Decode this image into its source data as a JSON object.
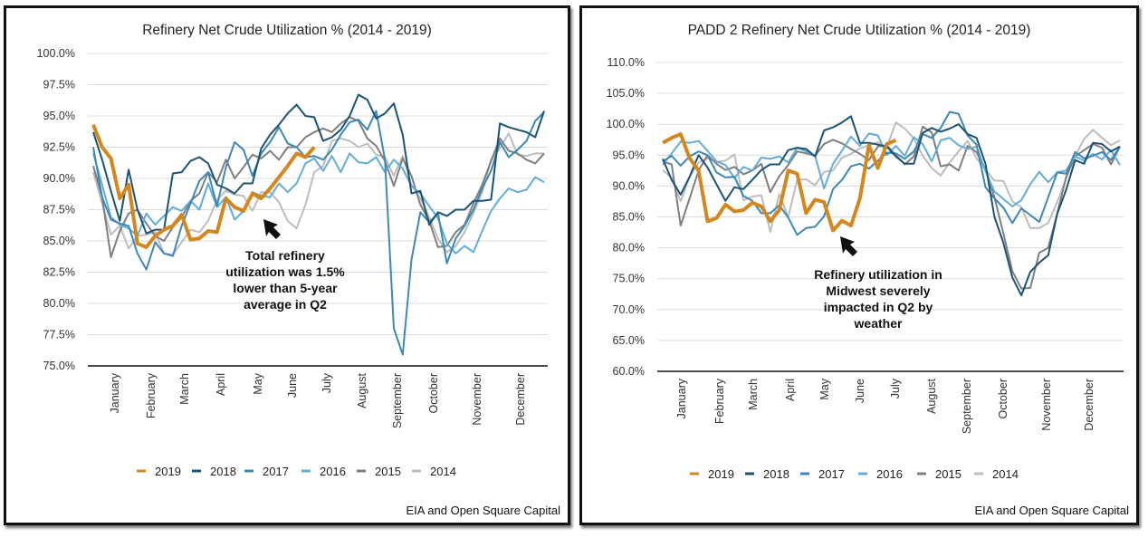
{
  "chart_data": [
    {
      "type": "line",
      "title": "Refinery Net Crude Utilization % (2014 - 2019)",
      "xlabel": "",
      "ylabel": "",
      "ylim": [
        75.0,
        100.0
      ],
      "yticks": [
        "75.0%",
        "77.5%",
        "80.0%",
        "82.5%",
        "85.0%",
        "87.5%",
        "90.0%",
        "92.5%",
        "95.0%",
        "97.5%",
        "100.0%"
      ],
      "ytick_values": [
        75.0,
        77.5,
        80.0,
        82.5,
        85.0,
        87.5,
        90.0,
        92.5,
        95.0,
        97.5,
        100.0
      ],
      "xticks": [
        "January",
        "February",
        "March",
        "April",
        "May",
        "June",
        "July",
        "August",
        "September",
        "October",
        "November",
        "December"
      ],
      "grid": true,
      "legend": "bottom",
      "annotation": [
        "Total refinery",
        "utilization was 1.5%",
        "lower than 5-year",
        "average in Q2"
      ],
      "credit": "EIA and Open Square Capital",
      "x_weeks": 52,
      "series": [
        {
          "name": "2019",
          "color": "#d4861f",
          "values": [
            94.3,
            92.5,
            91.6,
            88.4,
            89.5,
            84.8,
            84.5,
            85.4,
            85.9,
            86.2,
            87.1,
            85.1,
            85.2,
            85.8,
            85.7,
            88.4,
            87.7,
            87.4,
            88.8,
            88.4,
            89.2,
            90.1,
            91.0,
            92.0,
            91.7,
            92.5,
            null,
            null,
            null,
            null,
            null,
            null,
            null,
            null,
            null,
            null,
            null,
            null,
            null,
            null,
            null,
            null,
            null,
            null,
            null,
            null,
            null,
            null,
            null,
            null,
            null,
            null
          ]
        },
        {
          "name": "2018",
          "color": "#1c5473",
          "values": [
            93.7,
            91.5,
            89.0,
            86.6,
            90.7,
            87.5,
            85.6,
            85.9,
            85.9,
            90.4,
            90.5,
            91.4,
            91.7,
            91.2,
            89.5,
            89.2,
            88.8,
            89.6,
            89.6,
            92.4,
            93.5,
            94.3,
            95.2,
            95.9,
            95.0,
            94.9,
            93.0,
            93.3,
            93.9,
            95.0,
            96.7,
            96.3,
            94.8,
            95.2,
            96.0,
            93.5,
            88.8,
            89.0,
            86.3,
            87.3,
            87.0,
            87.5,
            87.5,
            88.2,
            88.2,
            88.3,
            94.4,
            94.1,
            93.9,
            93.7,
            93.3,
            95.4
          ]
        },
        {
          "name": "2017",
          "color": "#3d88b5",
          "values": [
            92.5,
            88.5,
            86.7,
            86.4,
            86.2,
            84.0,
            82.7,
            84.9,
            84.0,
            83.8,
            86.2,
            88.0,
            89.8,
            90.5,
            87.8,
            90.9,
            92.9,
            92.3,
            90.2,
            92.0,
            92.9,
            94.1,
            92.8,
            92.5,
            91.7,
            91.8,
            91.5,
            92.3,
            93.5,
            94.5,
            94.7,
            93.9,
            95.4,
            91.5,
            78.0,
            75.9,
            83.5,
            87.3,
            86.5,
            87.2,
            83.2,
            85.2,
            86.2,
            87.5,
            89.2,
            90.6,
            92.9,
            91.7,
            92.3,
            93.0,
            94.6,
            95.3
          ]
        },
        {
          "name": "2016",
          "color": "#62acd6",
          "values": [
            92.0,
            89.5,
            86.9,
            86.3,
            86.0,
            85.4,
            87.2,
            86.3,
            87.0,
            87.7,
            87.4,
            88.2,
            87.5,
            89.6,
            87.7,
            88.5,
            86.7,
            87.4,
            88.9,
            88.6,
            88.5,
            89.6,
            88.9,
            89.6,
            91.2,
            91.6,
            90.6,
            91.8,
            90.5,
            92.0,
            91.3,
            91.2,
            91.7,
            90.5,
            91.5,
            90.8,
            89.4,
            88.8,
            87.8,
            86.8,
            84.8,
            84.0,
            84.6,
            84.1,
            85.8,
            87.4,
            88.4,
            89.2,
            88.9,
            89.1,
            90.1,
            89.7
          ]
        },
        {
          "name": "2015",
          "color": "#7f7f7f",
          "values": [
            91.0,
            88.5,
            83.7,
            85.8,
            87.2,
            87.5,
            86.4,
            85.4,
            85.0,
            86.1,
            86.9,
            88.2,
            88.8,
            90.5,
            89.7,
            91.5,
            90.0,
            90.9,
            91.9,
            91.6,
            92.2,
            91.5,
            92.5,
            92.5,
            93.3,
            93.7,
            94.0,
            93.7,
            94.4,
            94.9,
            94.6,
            93.2,
            92.6,
            91.4,
            89.4,
            91.6,
            90.2,
            87.9,
            86.6,
            84.5,
            84.6,
            85.7,
            86.3,
            88.0,
            89.5,
            91.4,
            93.2,
            92.2,
            92.0,
            91.5,
            91.2,
            92.0
          ]
        },
        {
          "name": "2014",
          "color": "#bdbdbd",
          "values": [
            90.5,
            88.0,
            85.5,
            86.2,
            84.4,
            85.4,
            85.5,
            85.7,
            84.0,
            83.9,
            84.9,
            85.9,
            85.7,
            86.6,
            88.3,
            89.0,
            88.7,
            88.6,
            87.4,
            88.9,
            88.9,
            88.1,
            86.6,
            86.0,
            87.9,
            90.5,
            91.0,
            93.0,
            93.2,
            93.0,
            92.5,
            92.8,
            91.9,
            91.7,
            90.2,
            91.8,
            89.5,
            88.4,
            86.9,
            85.2,
            84.1,
            84.6,
            85.7,
            87.2,
            88.9,
            91.5,
            92.4,
            93.6,
            91.9,
            91.8,
            92.0,
            92.0
          ]
        }
      ]
    },
    {
      "type": "line",
      "title": "PADD 2 Refinery Net Crude Utilization % (2014 - 2019)",
      "xlabel": "",
      "ylabel": "",
      "ylim": [
        60.0,
        110.0
      ],
      "yticks": [
        "60.0%",
        "65.0%",
        "70.0%",
        "75.0%",
        "80.0%",
        "85.0%",
        "90.0%",
        "95.0%",
        "100.0%",
        "105.0%",
        "110.0%"
      ],
      "ytick_values": [
        60,
        65,
        70,
        75,
        80,
        85,
        90,
        95,
        100,
        105,
        110
      ],
      "xticks": [
        "January",
        "February",
        "March",
        "April",
        "May",
        "June",
        "July",
        "August",
        "September",
        "October",
        "November",
        "December"
      ],
      "grid": true,
      "legend": "bottom",
      "annotation": [
        "Refinery utilization in",
        "Midwest severely",
        "impacted in Q2 by",
        "weather"
      ],
      "credit": "EIA and Open Square Capital",
      "x_weeks": 52,
      "series": [
        {
          "name": "2019",
          "color": "#d4861f",
          "values": [
            97.0,
            97.8,
            98.4,
            94.5,
            92.5,
            84.3,
            84.8,
            87.0,
            85.9,
            86.1,
            87.3,
            86.7,
            84.3,
            86.1,
            92.5,
            92.0,
            85.6,
            87.8,
            87.4,
            82.8,
            84.4,
            83.6,
            88.0,
            96.6,
            92.9,
            96.8,
            97.4,
            null,
            null,
            null,
            null,
            null,
            null,
            null,
            null,
            null,
            null,
            null,
            null,
            null,
            null,
            null,
            null,
            null,
            null,
            null,
            null,
            null,
            null,
            null,
            null,
            null
          ]
        },
        {
          "name": "2018",
          "color": "#1c5473",
          "values": [
            94.4,
            91.0,
            88.6,
            91.5,
            95.0,
            93.0,
            90.3,
            87.6,
            89.8,
            89.5,
            91.0,
            92.6,
            93.5,
            93.5,
            95.8,
            96.2,
            96.0,
            94.8,
            99.0,
            99.5,
            100.3,
            101.3,
            97.0,
            97.0,
            96.7,
            96.4,
            94.8,
            93.6,
            93.6,
            98.6,
            99.4,
            98.8,
            99.3,
            100.0,
            98.4,
            97.8,
            93.6,
            85.0,
            80.8,
            75.2,
            72.3,
            76.1,
            77.6,
            78.8,
            85.5,
            89.4,
            94.2,
            93.6,
            97.0,
            96.8,
            95.6,
            96.4
          ]
        },
        {
          "name": "2017",
          "color": "#3d88b5",
          "values": [
            94.0,
            94.9,
            93.3,
            94.8,
            95.6,
            95.0,
            92.2,
            91.4,
            91.5,
            88.4,
            87.6,
            85.6,
            85.6,
            86.9,
            84.9,
            82.1,
            83.2,
            83.4,
            85.1,
            89.5,
            91.0,
            93.2,
            93.6,
            92.8,
            94.1,
            95.4,
            95.3,
            94.4,
            95.6,
            98.4,
            97.8,
            99.4,
            102.0,
            101.7,
            98.2,
            96.7,
            89.8,
            88.0,
            86.5,
            84.0,
            86.4,
            85.3,
            84.2,
            88.2,
            92.2,
            92.0,
            95.5,
            94.5,
            94.9,
            95.5,
            94.2,
            96.4
          ]
        },
        {
          "name": "2016",
          "color": "#62acd6",
          "values": [
            93.4,
            95.3,
            97.2,
            97.0,
            97.3,
            95.7,
            94.0,
            93.4,
            91.3,
            93.1,
            92.5,
            94.6,
            94.4,
            94.8,
            93.8,
            96.2,
            95.6,
            94.9,
            89.6,
            93.6,
            95.7,
            98.0,
            96.5,
            98.5,
            98.2,
            95.0,
            96.5,
            94.9,
            97.9,
            96.8,
            94.0,
            97.4,
            97.8,
            96.6,
            96.0,
            96.4,
            92.4,
            89.1,
            87.9,
            86.7,
            87.7,
            90.3,
            92.3,
            90.6,
            92.2,
            92.5,
            94.8,
            94.1,
            95.2,
            94.3,
            95.8,
            93.4
          ]
        },
        {
          "name": "2015",
          "color": "#7f7f7f",
          "values": [
            94.0,
            93.5,
            83.6,
            88.0,
            92.5,
            95.0,
            93.6,
            92.6,
            93.1,
            91.9,
            92.5,
            93.6,
            89.0,
            91.6,
            93.4,
            95.6,
            95.3,
            94.9,
            96.8,
            97.5,
            96.9,
            96.0,
            95.2,
            94.2,
            96.4,
            96.6,
            95.0,
            93.5,
            94.8,
            99.6,
            98.7,
            93.2,
            93.5,
            92.5,
            96.5,
            95.5,
            92.7,
            88.2,
            82.3,
            76.2,
            73.4,
            73.5,
            79.2,
            80.0,
            85.5,
            91.5,
            94.8,
            95.8,
            96.8,
            96.2,
            93.5,
            96.4
          ]
        },
        {
          "name": "2014",
          "color": "#bdbdbd",
          "values": [
            92.6,
            91.3,
            87.5,
            91.5,
            93.8,
            94.5,
            93.9,
            94.1,
            95.1,
            87.7,
            88.3,
            88.5,
            82.6,
            88.7,
            85.0,
            91.0,
            91.1,
            90.1,
            92.3,
            92.5,
            94.6,
            95.2,
            96.1,
            96.6,
            97.1,
            96.3,
            100.3,
            99.3,
            97.7,
            94.9,
            92.9,
            91.7,
            93.8,
            95.6,
            97.3,
            94.5,
            92.6,
            90.9,
            90.8,
            87.5,
            86.6,
            83.2,
            83.2,
            84.0,
            87.4,
            91.2,
            94.9,
            97.6,
            99.1,
            97.8,
            96.6,
            97.4
          ]
        }
      ]
    }
  ]
}
